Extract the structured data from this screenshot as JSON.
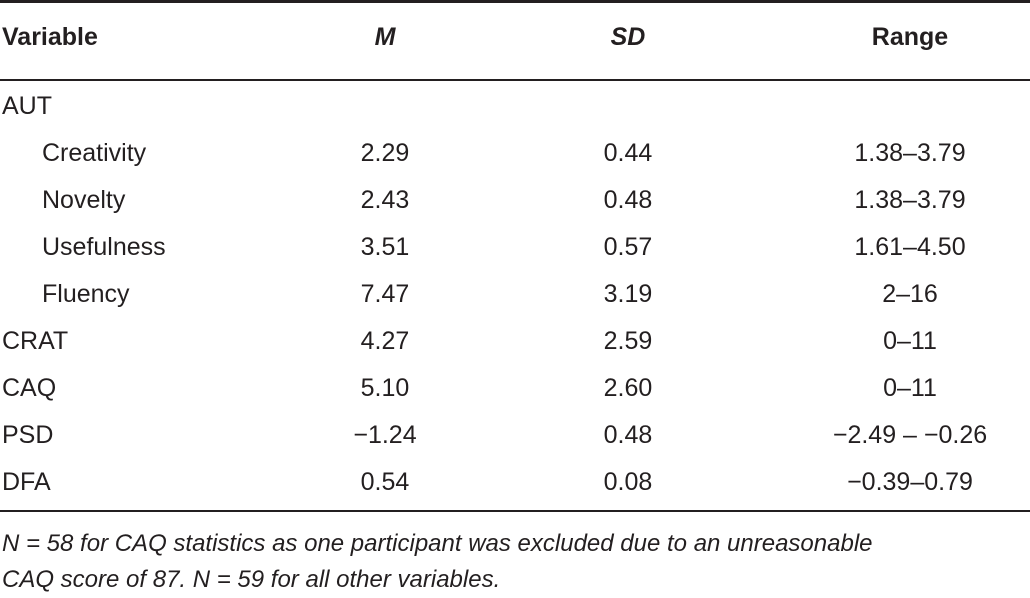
{
  "header": {
    "variable": "Variable",
    "m": "M",
    "sd": "SD",
    "range": "Range"
  },
  "rows": [
    {
      "variable": "AUT",
      "m": "",
      "sd": "",
      "range": "",
      "indent": false
    },
    {
      "variable": "Creativity",
      "m": "2.29",
      "sd": "0.44",
      "range": "1.38–3.79",
      "indent": true
    },
    {
      "variable": "Novelty",
      "m": "2.43",
      "sd": "0.48",
      "range": "1.38–3.79",
      "indent": true
    },
    {
      "variable": "Usefulness",
      "m": "3.51",
      "sd": "0.57",
      "range": "1.61–4.50",
      "indent": true
    },
    {
      "variable": "Fluency",
      "m": "7.47",
      "sd": "3.19",
      "range": "2–16",
      "indent": true
    },
    {
      "variable": "CRAT",
      "m": "4.27",
      "sd": "2.59",
      "range": "0–11",
      "indent": false
    },
    {
      "variable": "CAQ",
      "m": "5.10",
      "sd": "2.60",
      "range": "0–11",
      "indent": false
    },
    {
      "variable": "PSD",
      "m": "−1.24",
      "sd": "0.48",
      "range": "−2.49 – −0.26",
      "indent": false
    },
    {
      "variable": "DFA",
      "m": "0.54",
      "sd": "0.08",
      "range": "−0.39–0.79",
      "indent": false
    }
  ],
  "note": {
    "line1": "N = 58 for CAQ statistics as one participant was excluded due to an unreasonable",
    "line2": "CAQ score of 87. N = 59 for all other variables."
  }
}
